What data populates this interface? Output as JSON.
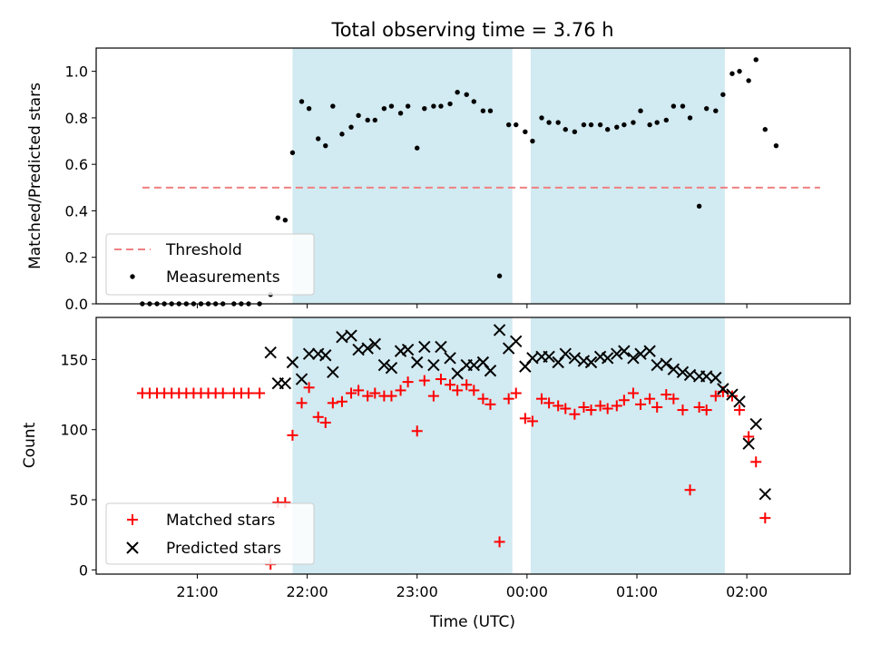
{
  "chart_data": {
    "type": "scatter",
    "title": "Total observing time = 3.76 h",
    "xlabel": "Time (UTC)",
    "x_ticks": [
      "21:00",
      "22:00",
      "23:00",
      "00:00",
      "01:00",
      "02:00"
    ],
    "shaded_intervals": [
      [
        "21:52",
        "23:52"
      ],
      [
        "00:02",
        "01:48"
      ]
    ],
    "panels": [
      {
        "ylabel": "Matched/Predicted stars",
        "ylim": [
          0,
          1.1
        ],
        "y_ticks": [
          "0.0",
          "0.2",
          "0.4",
          "0.6",
          "0.8",
          "1.0"
        ],
        "threshold": {
          "name": "Threshold",
          "value": 0.5,
          "x_start": "20:30",
          "x_end": "02:40",
          "color": "#f08080"
        },
        "series": [
          {
            "name": "Measurements",
            "color": "#000000",
            "marker": "dot",
            "points": [
              [
                "20:30",
                0
              ],
              [
                "20:34",
                0
              ],
              [
                "20:38",
                0
              ],
              [
                "20:42",
                0
              ],
              [
                "20:46",
                0
              ],
              [
                "20:50",
                0
              ],
              [
                "20:54",
                0
              ],
              [
                "20:58",
                0
              ],
              [
                "21:02",
                0
              ],
              [
                "21:06",
                0
              ],
              [
                "21:10",
                0
              ],
              [
                "21:14",
                0
              ],
              [
                "21:20",
                0
              ],
              [
                "21:24",
                0
              ],
              [
                "21:28",
                0
              ],
              [
                "21:34",
                0
              ],
              [
                "21:40",
                0.04
              ],
              [
                "21:44",
                0.37
              ],
              [
                "21:48",
                0.36
              ],
              [
                "21:52",
                0.65
              ],
              [
                "21:57",
                0.87
              ],
              [
                "22:01",
                0.84
              ],
              [
                "22:06",
                0.71
              ],
              [
                "22:10",
                0.68
              ],
              [
                "22:14",
                0.85
              ],
              [
                "22:19",
                0.73
              ],
              [
                "22:24",
                0.76
              ],
              [
                "22:28",
                0.81
              ],
              [
                "22:33",
                0.79
              ],
              [
                "22:37",
                0.79
              ],
              [
                "22:42",
                0.84
              ],
              [
                "22:46",
                0.85
              ],
              [
                "22:51",
                0.82
              ],
              [
                "22:55",
                0.85
              ],
              [
                "23:00",
                0.67
              ],
              [
                "23:04",
                0.84
              ],
              [
                "23:09",
                0.85
              ],
              [
                "23:13",
                0.85
              ],
              [
                "23:18",
                0.86
              ],
              [
                "23:22",
                0.91
              ],
              [
                "23:27",
                0.9
              ],
              [
                "23:31",
                0.87
              ],
              [
                "23:36",
                0.83
              ],
              [
                "23:40",
                0.83
              ],
              [
                "23:45",
                0.12
              ],
              [
                "23:50",
                0.77
              ],
              [
                "23:54",
                0.77
              ],
              [
                "23:59",
                0.74
              ],
              [
                "00:03",
                0.7
              ],
              [
                "00:08",
                0.8
              ],
              [
                "00:12",
                0.78
              ],
              [
                "00:17",
                0.78
              ],
              [
                "00:21",
                0.75
              ],
              [
                "00:26",
                0.74
              ],
              [
                "00:31",
                0.77
              ],
              [
                "00:35",
                0.77
              ],
              [
                "00:40",
                0.77
              ],
              [
                "00:44",
                0.75
              ],
              [
                "00:49",
                0.76
              ],
              [
                "00:53",
                0.77
              ],
              [
                "00:58",
                0.78
              ],
              [
                "01:02",
                0.83
              ],
              [
                "01:07",
                0.77
              ],
              [
                "01:11",
                0.78
              ],
              [
                "01:16",
                0.79
              ],
              [
                "01:20",
                0.85
              ],
              [
                "01:25",
                0.85
              ],
              [
                "01:29",
                0.8
              ],
              [
                "01:34",
                0.42
              ],
              [
                "01:38",
                0.84
              ],
              [
                "01:43",
                0.83
              ],
              [
                "01:47",
                0.9
              ],
              [
                "01:52",
                0.99
              ],
              [
                "01:56",
                1.0
              ],
              [
                "02:01",
                0.96
              ],
              [
                "02:05",
                1.05
              ],
              [
                "02:10",
                0.75
              ],
              [
                "02:16",
                0.68
              ]
            ]
          }
        ],
        "legend_position": "lower-left"
      },
      {
        "ylabel": "Count",
        "ylim": [
          -3,
          180
        ],
        "y_ticks": [
          "0",
          "50",
          "100",
          "150"
        ],
        "series": [
          {
            "name": "Matched stars",
            "color": "#ff0000",
            "marker": "plus",
            "points": [
              [
                "20:30",
                126
              ],
              [
                "20:34",
                126
              ],
              [
                "20:38",
                126
              ],
              [
                "20:42",
                126
              ],
              [
                "20:46",
                126
              ],
              [
                "20:50",
                126
              ],
              [
                "20:54",
                126
              ],
              [
                "20:58",
                126
              ],
              [
                "21:02",
                126
              ],
              [
                "21:06",
                126
              ],
              [
                "21:10",
                126
              ],
              [
                "21:14",
                126
              ],
              [
                "21:20",
                126
              ],
              [
                "21:24",
                126
              ],
              [
                "21:28",
                126
              ],
              [
                "21:34",
                126
              ],
              [
                "21:40",
                4
              ],
              [
                "21:44",
                48
              ],
              [
                "21:48",
                48
              ],
              [
                "21:52",
                96
              ],
              [
                "21:57",
                119
              ],
              [
                "22:01",
                130
              ],
              [
                "22:06",
                109
              ],
              [
                "22:10",
                105
              ],
              [
                "22:14",
                119
              ],
              [
                "22:19",
                120
              ],
              [
                "22:24",
                126
              ],
              [
                "22:28",
                128
              ],
              [
                "22:33",
                124
              ],
              [
                "22:37",
                126
              ],
              [
                "22:42",
                124
              ],
              [
                "22:46",
                124
              ],
              [
                "22:51",
                128
              ],
              [
                "22:55",
                134
              ],
              [
                "23:00",
                99
              ],
              [
                "23:04",
                135
              ],
              [
                "23:09",
                124
              ],
              [
                "23:13",
                136
              ],
              [
                "23:18",
                132
              ],
              [
                "23:22",
                128
              ],
              [
                "23:27",
                132
              ],
              [
                "23:31",
                128
              ],
              [
                "23:36",
                122
              ],
              [
                "23:40",
                118
              ],
              [
                "23:45",
                20
              ],
              [
                "23:50",
                122
              ],
              [
                "23:54",
                126
              ],
              [
                "23:59",
                108
              ],
              [
                "00:03",
                106
              ],
              [
                "00:08",
                122
              ],
              [
                "00:12",
                119
              ],
              [
                "00:17",
                117
              ],
              [
                "00:21",
                115
              ],
              [
                "00:26",
                111
              ],
              [
                "00:31",
                116
              ],
              [
                "00:35",
                114
              ],
              [
                "00:40",
                117
              ],
              [
                "00:44",
                115
              ],
              [
                "00:49",
                117
              ],
              [
                "00:53",
                121
              ],
              [
                "00:58",
                126
              ],
              [
                "01:02",
                118
              ],
              [
                "01:07",
                122
              ],
              [
                "01:11",
                116
              ],
              [
                "01:16",
                125
              ],
              [
                "01:20",
                122
              ],
              [
                "01:25",
                114
              ],
              [
                "01:29",
                57
              ],
              [
                "01:34",
                116
              ],
              [
                "01:38",
                114
              ],
              [
                "01:43",
                124
              ],
              [
                "01:47",
                127
              ],
              [
                "01:52",
                124
              ],
              [
                "01:56",
                114
              ],
              [
                "02:01",
                95
              ],
              [
                "02:05",
                77
              ],
              [
                "02:10",
                37
              ]
            ]
          },
          {
            "name": "Predicted stars",
            "color": "#000000",
            "marker": "x",
            "points": [
              [
                "21:40",
                155
              ],
              [
                "21:44",
                133
              ],
              [
                "21:48",
                133
              ],
              [
                "21:52",
                148
              ],
              [
                "21:57",
                136
              ],
              [
                "22:01",
                154
              ],
              [
                "22:06",
                154
              ],
              [
                "22:10",
                153
              ],
              [
                "22:14",
                141
              ],
              [
                "22:19",
                166
              ],
              [
                "22:24",
                167
              ],
              [
                "22:28",
                157
              ],
              [
                "22:33",
                158
              ],
              [
                "22:37",
                161
              ],
              [
                "22:42",
                146
              ],
              [
                "22:46",
                144
              ],
              [
                "22:51",
                156
              ],
              [
                "22:55",
                157
              ],
              [
                "23:00",
                148
              ],
              [
                "23:04",
                159
              ],
              [
                "23:09",
                146
              ],
              [
                "23:13",
                159
              ],
              [
                "23:18",
                151
              ],
              [
                "23:22",
                140
              ],
              [
                "23:27",
                146
              ],
              [
                "23:31",
                146
              ],
              [
                "23:36",
                148
              ],
              [
                "23:40",
                142
              ],
              [
                "23:45",
                171
              ],
              [
                "23:50",
                158
              ],
              [
                "23:54",
                163
              ],
              [
                "23:59",
                145
              ],
              [
                "00:03",
                151
              ],
              [
                "00:08",
                152
              ],
              [
                "00:12",
                152
              ],
              [
                "00:17",
                148
              ],
              [
                "00:21",
                154
              ],
              [
                "00:26",
                151
              ],
              [
                "00:31",
                149
              ],
              [
                "00:35",
                148
              ],
              [
                "00:40",
                152
              ],
              [
                "00:44",
                151
              ],
              [
                "00:49",
                154
              ],
              [
                "00:53",
                156
              ],
              [
                "00:58",
                151
              ],
              [
                "01:02",
                154
              ],
              [
                "01:07",
                156
              ],
              [
                "01:11",
                146
              ],
              [
                "01:16",
                147
              ],
              [
                "01:20",
                143
              ],
              [
                "01:25",
                141
              ],
              [
                "01:29",
                139
              ],
              [
                "01:34",
                138
              ],
              [
                "01:38",
                138
              ],
              [
                "01:43",
                137
              ],
              [
                "01:47",
                129
              ],
              [
                "01:52",
                125
              ],
              [
                "01:56",
                120
              ],
              [
                "02:01",
                90
              ],
              [
                "02:05",
                104
              ],
              [
                "02:10",
                54
              ]
            ]
          }
        ],
        "legend_position": "lower-left"
      }
    ],
    "colors": {
      "shade": "#add8e6",
      "threshold": "#f08080",
      "matched": "#ff0000",
      "predicted": "#000000",
      "measurements": "#000000"
    }
  }
}
